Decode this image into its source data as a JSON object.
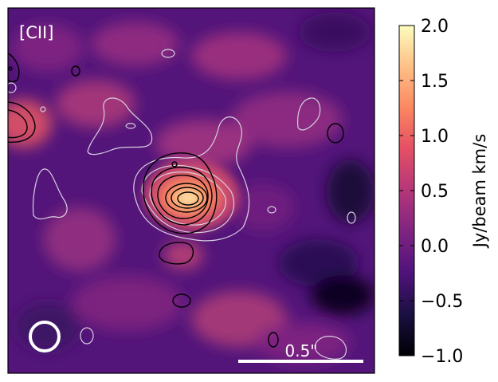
{
  "chart_data": {
    "type": "heatmap",
    "map_label": "[CII]",
    "colormap": "magma",
    "colorbar": {
      "label": "Jy/beam km/s",
      "vmin": -1.0,
      "vmax": 2.0,
      "ticks": [
        -1.0,
        -0.5,
        0.0,
        0.5,
        1.0,
        1.5,
        2.0
      ],
      "tick_labels": [
        "−1.0",
        "−0.5",
        "0.0",
        "0.5",
        "1.0",
        "1.5",
        "2.0"
      ]
    },
    "scale_bar": {
      "label": "0.5\"",
      "length_arcsec": 0.5
    },
    "beam": {
      "shape": "circle",
      "color": "#ffffff"
    },
    "contours": {
      "black": {
        "color": "#000000",
        "description_levels": 6
      },
      "white": {
        "color": "#d8cfe0",
        "description_levels": 6
      }
    },
    "peak": {
      "value": 2.0
    },
    "colors": {
      "background_low": "#2a0f52",
      "background_mid": "#5c1a78",
      "emission_mid": "#c43d6c",
      "emission_high": "#fdf2bd"
    }
  }
}
